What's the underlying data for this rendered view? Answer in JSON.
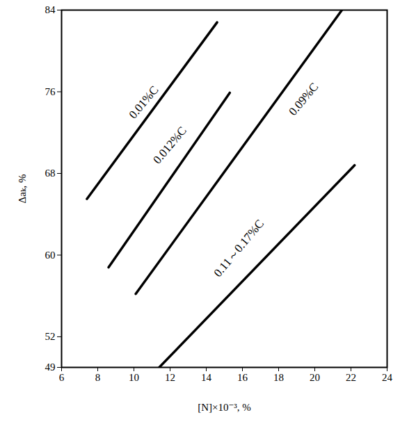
{
  "chart_data": {
    "type": "line",
    "x_label": "[N]×10⁻³, %",
    "y_label": "Δaₖ, %",
    "xlim": [
      6,
      24
    ],
    "xticks": [
      6,
      8,
      10,
      12,
      14,
      16,
      18,
      20,
      22,
      24
    ],
    "ylim": [
      49,
      84
    ],
    "yticks": [
      49,
      52,
      60,
      68,
      76,
      84
    ],
    "grid": false,
    "series": [
      {
        "name": "0.01%C",
        "color": "#000000",
        "x": [
          7.4,
          14.6
        ],
        "values": [
          65.5,
          82.8
        ]
      },
      {
        "name": "0.012%C",
        "color": "#000000",
        "x": [
          8.6,
          15.3
        ],
        "values": [
          58.8,
          75.9
        ]
      },
      {
        "name": "0.09%C",
        "color": "#000000",
        "x": [
          10.1,
          21.5
        ],
        "values": [
          56.2,
          84
        ]
      },
      {
        "name": "0.11～0.17%C",
        "color": "#000000",
        "x": [
          11.4,
          22.2
        ],
        "values": [
          49,
          68.8
        ]
      }
    ]
  }
}
